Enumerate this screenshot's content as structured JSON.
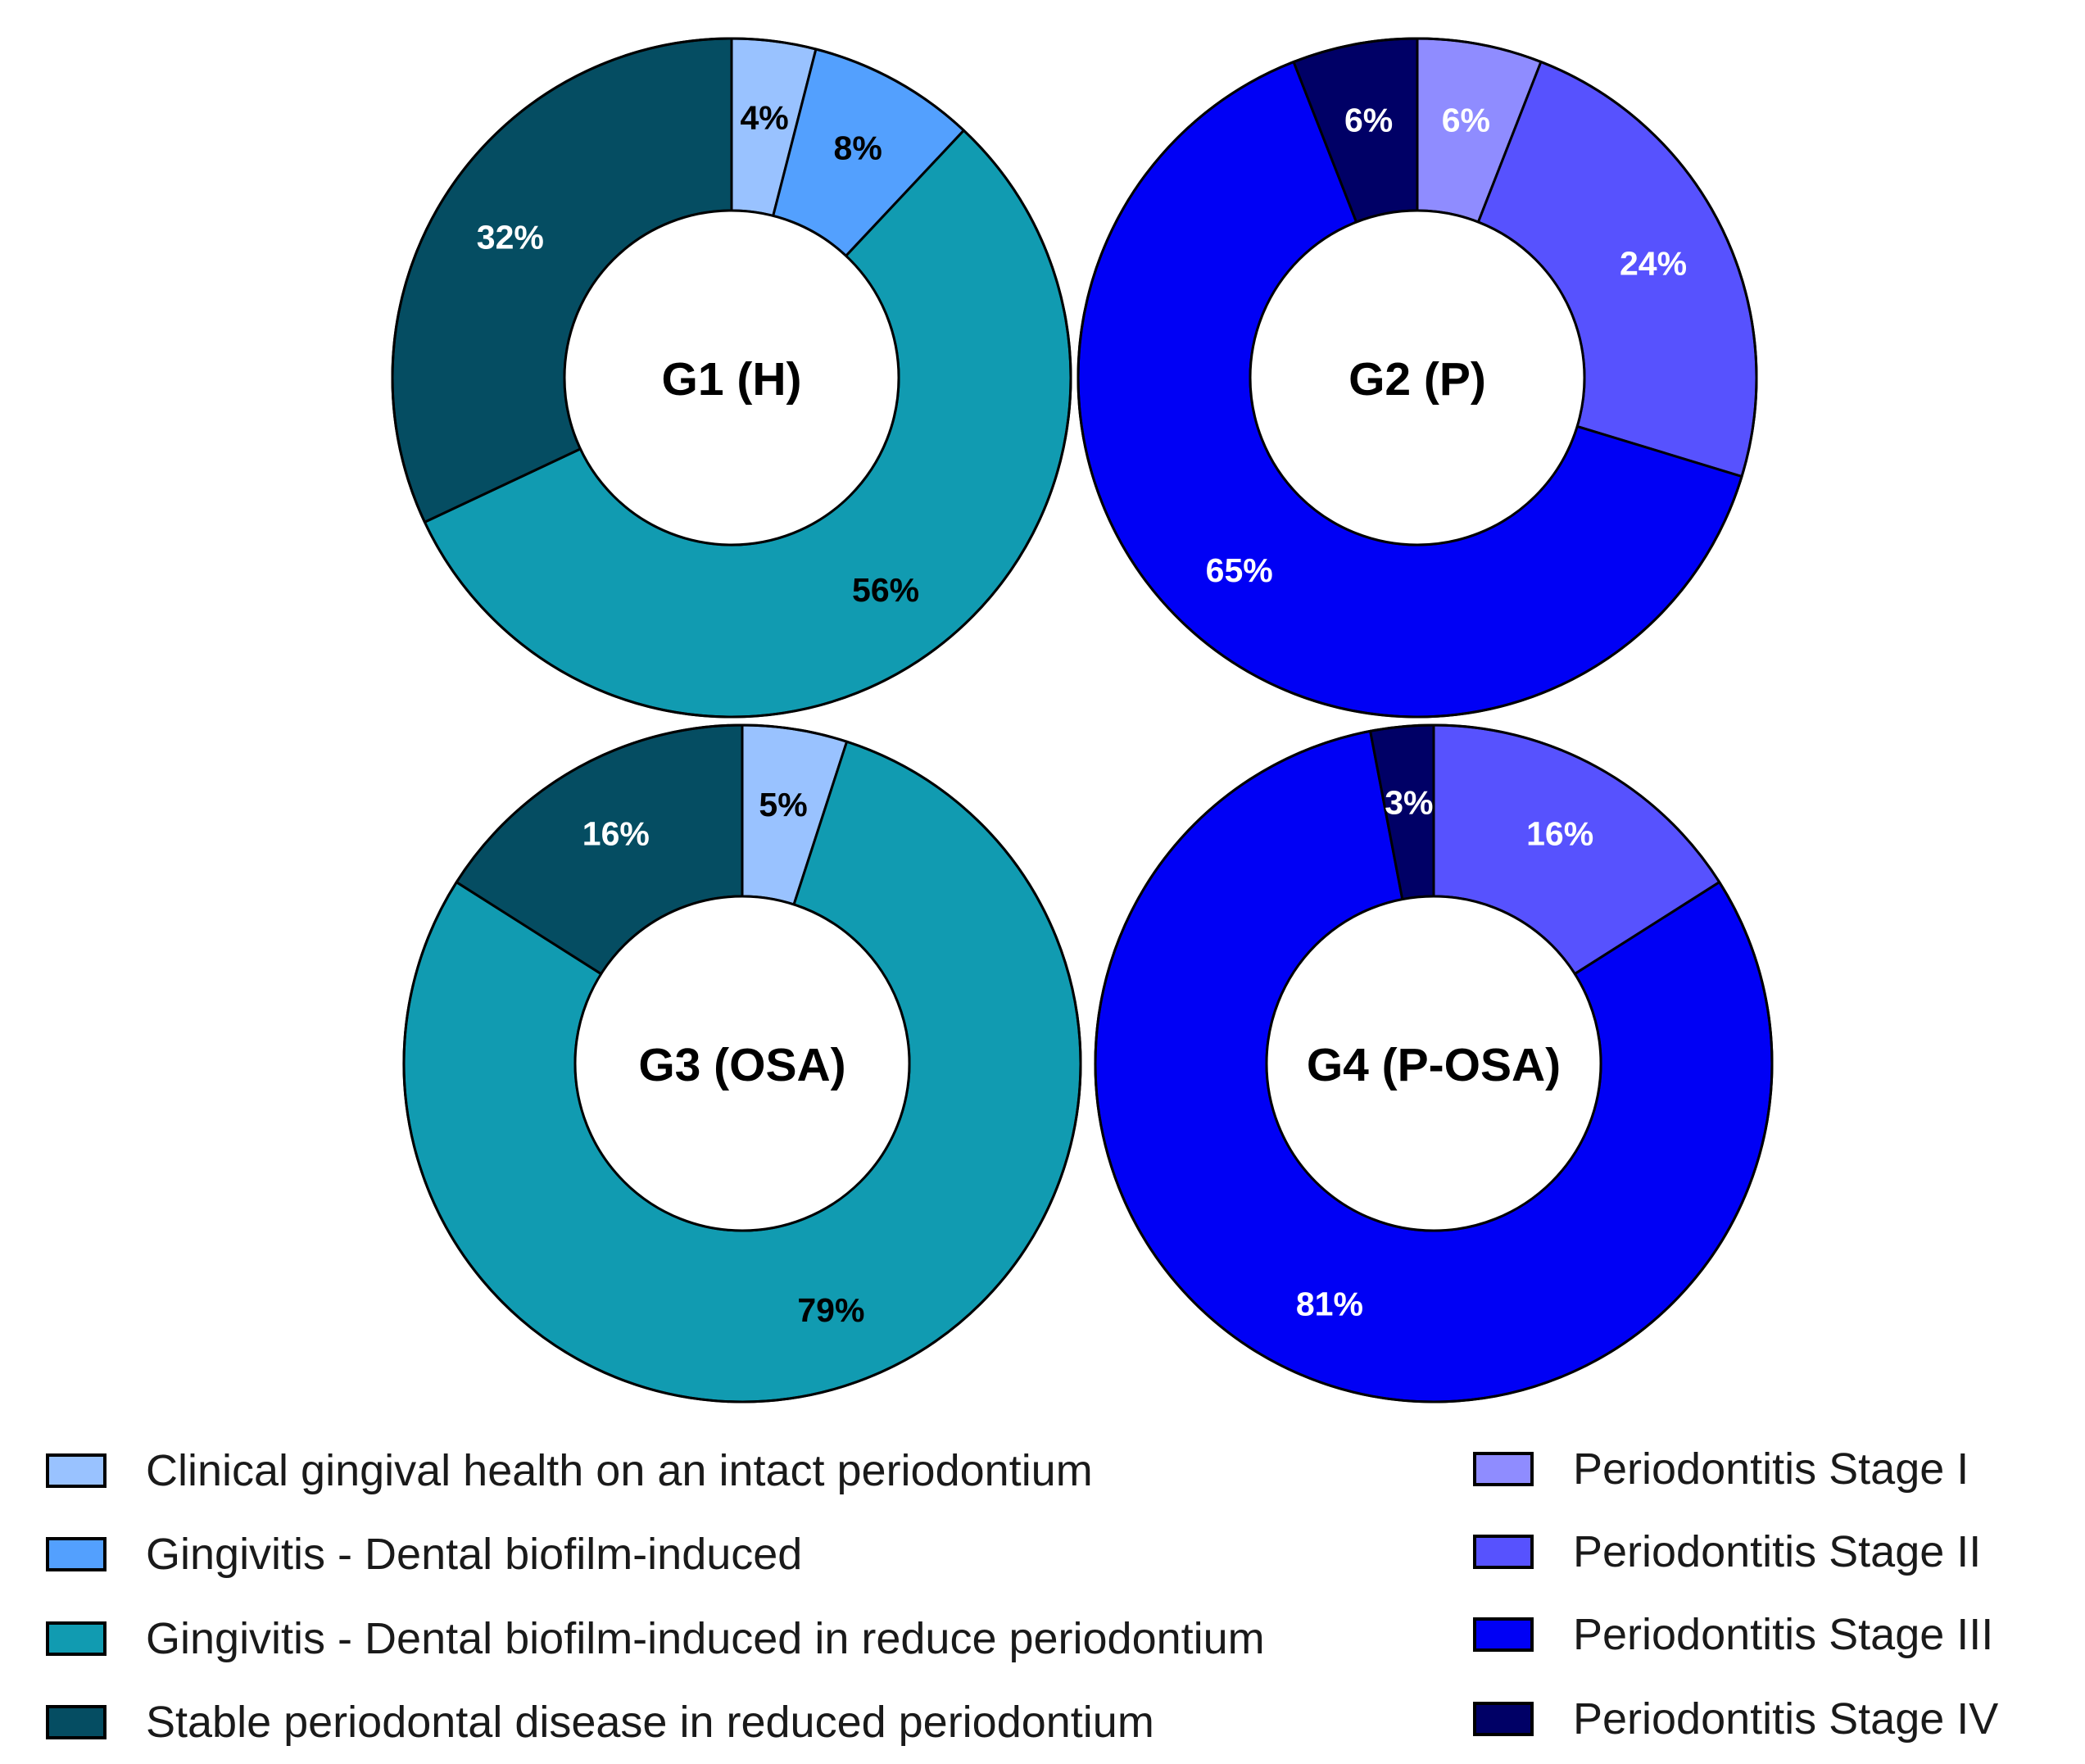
{
  "chart_data": [
    {
      "type": "donut",
      "title": "G1 (H)",
      "categories": [
        "Clinical gingival health on an intact periodontium",
        "Gingivitis - Dental biofilm-induced",
        "Gingivitis - Dental biofilm-induced in reduce periodontium",
        "Stable periodontal disease in reduced periodontium"
      ],
      "values": [
        4,
        8,
        56,
        32
      ],
      "labels": [
        "4%",
        "8%",
        "56%",
        "32%"
      ],
      "colors": [
        "#99c2ff",
        "#53a0fe",
        "#119bb1",
        "#054d62"
      ],
      "label_colors": [
        "#000000",
        "#000000",
        "#000000",
        "#ffffff"
      ]
    },
    {
      "type": "donut",
      "title": "G2 (P)",
      "categories": [
        "Periodontitis Stage I",
        "Periodontitis Stage II",
        "Periodontitis Stage III",
        "Periodontitis Stage IV"
      ],
      "values": [
        6,
        24,
        65,
        6
      ],
      "labels": [
        "6%",
        "24%",
        "65%",
        "6%"
      ],
      "colors": [
        "#8f8cff",
        "#5752fe",
        "#0000f5",
        "#000066"
      ],
      "label_colors": [
        "#ffffff",
        "#ffffff",
        "#ffffff",
        "#ffffff"
      ]
    },
    {
      "type": "donut",
      "title": "G3 (OSA)",
      "categories": [
        "Clinical gingival health on an intact periodontium",
        "Gingivitis - Dental biofilm-induced in reduce periodontium",
        "Stable periodontal disease in reduced periodontium"
      ],
      "values": [
        5,
        79,
        16
      ],
      "labels": [
        "5%",
        "79%",
        "16%"
      ],
      "colors": [
        "#99c2ff",
        "#119bb1",
        "#054d62"
      ],
      "label_colors": [
        "#000000",
        "#000000",
        "#ffffff"
      ]
    },
    {
      "type": "donut",
      "title": "G4 (P-OSA)",
      "categories": [
        "Periodontitis Stage II",
        "Periodontitis Stage III",
        "Periodontitis Stage IV"
      ],
      "values": [
        16,
        81,
        3
      ],
      "labels": [
        "16%",
        "81%",
        "3%"
      ],
      "colors": [
        "#5752fe",
        "#0000f5",
        "#000066"
      ],
      "label_colors": [
        "#ffffff",
        "#ffffff",
        "#ffffff"
      ]
    }
  ],
  "legends": {
    "left": [
      {
        "label": "Clinical gingival health on an intact periodontium",
        "color": "#99c2ff"
      },
      {
        "label": "Gingivitis - Dental biofilm-induced",
        "color": "#53a0fe"
      },
      {
        "label": "Gingivitis - Dental biofilm-induced in reduce periodontium",
        "color": "#119bb1"
      },
      {
        "label": "Stable periodontal disease in reduced periodontium",
        "color": "#054d62"
      }
    ],
    "right": [
      {
        "label": "Periodontitis Stage I",
        "color": "#8f8cff"
      },
      {
        "label": "Periodontitis Stage II",
        "color": "#5752fe"
      },
      {
        "label": "Periodontitis Stage III",
        "color": "#0000f5"
      },
      {
        "label": "Periodontitis Stage IV",
        "color": "#000066"
      }
    ]
  }
}
